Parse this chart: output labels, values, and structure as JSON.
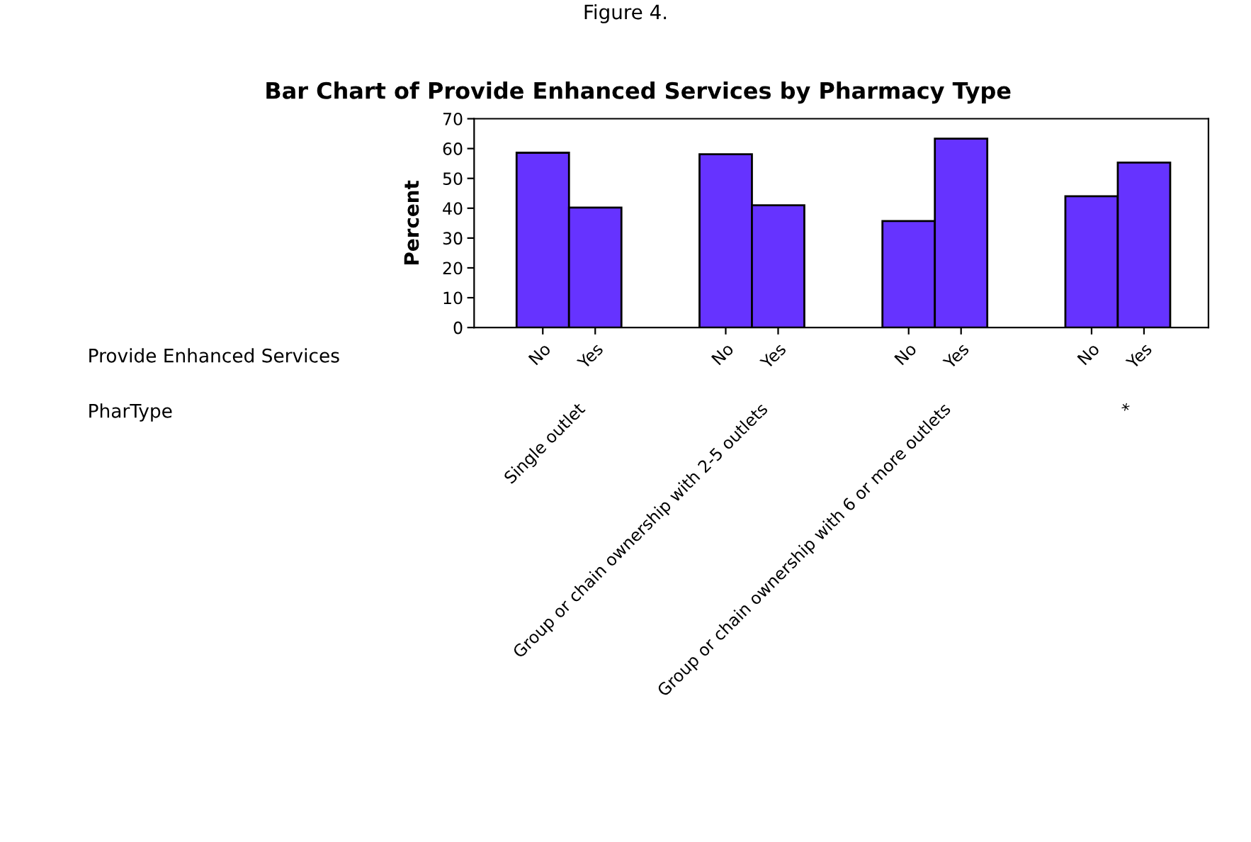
{
  "chart_data": {
    "type": "bar",
    "title": "Bar Chart of Provide Enhanced Services by Pharmacy Type",
    "ylabel": "Percent",
    "categories": [
      "No",
      "Yes",
      "No",
      "Yes",
      "No",
      "Yes",
      "No",
      "Yes"
    ],
    "values": [
      58.6,
      40.2,
      58.1,
      41.0,
      35.7,
      63.3,
      44.0,
      55.3
    ],
    "color": "#6633ff",
    "ylim": [
      0,
      70
    ],
    "yticks": [
      0,
      10,
      20,
      30,
      40,
      50,
      60,
      70
    ],
    "grid": false,
    "annotations": [
      "Figure 4.",
      "Provide Enhanced Services",
      "PharType",
      "Single outlet",
      "Group or chain ownership with 2-5 outlets",
      "Group or chain ownership with 6 or more outlets",
      "*"
    ]
  }
}
